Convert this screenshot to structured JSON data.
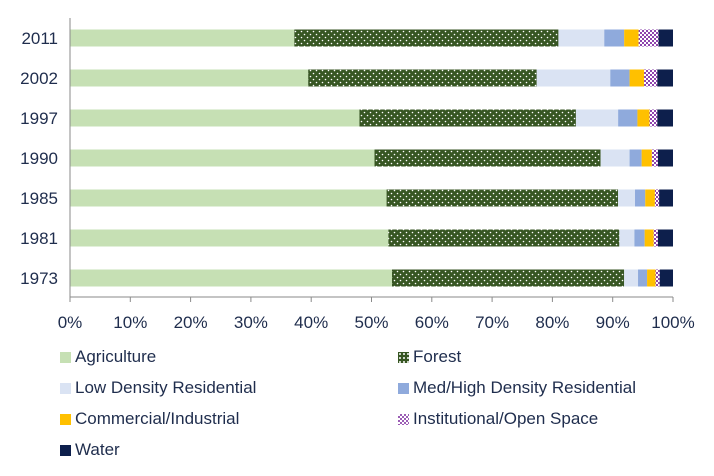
{
  "chart_data": {
    "type": "bar",
    "orientation": "horizontal",
    "stacked": "percent",
    "categories": [
      "2011",
      "2002",
      "1997",
      "1990",
      "1985",
      "1981",
      "1973"
    ],
    "xlim": [
      0,
      100
    ],
    "xticks": [
      "0%",
      "10%",
      "20%",
      "30%",
      "40%",
      "50%",
      "60%",
      "70%",
      "80%",
      "90%",
      "100%"
    ],
    "grid": false,
    "legend_position": "bottom",
    "series": [
      {
        "name": "Agriculture",
        "color": "#c6e0b4",
        "pattern": "solid",
        "values": [
          37.2,
          39.5,
          48.0,
          50.5,
          52.5,
          52.8,
          53.4
        ]
      },
      {
        "name": "Forest",
        "color": "#375623",
        "pattern": "dots",
        "values": [
          43.8,
          37.9,
          35.9,
          37.5,
          38.4,
          38.3,
          38.5
        ]
      },
      {
        "name": "Low Density Residential",
        "color": "#dae3f3",
        "pattern": "solid",
        "values": [
          7.6,
          12.2,
          7.0,
          4.8,
          2.8,
          2.5,
          2.3
        ]
      },
      {
        "name": "Med/High Density Residential",
        "color": "#8faadc",
        "pattern": "solid",
        "values": [
          3.3,
          3.2,
          3.2,
          2.0,
          1.7,
          1.7,
          1.5
        ]
      },
      {
        "name": "Commercial/Industrial",
        "color": "#ffc000",
        "pattern": "solid",
        "values": [
          2.4,
          2.4,
          2.0,
          1.7,
          1.6,
          1.5,
          1.4
        ]
      },
      {
        "name": "Institutional/Open Space",
        "color": "#9b5db5",
        "pattern": "checker",
        "values": [
          3.3,
          2.2,
          1.3,
          1.0,
          0.7,
          0.7,
          0.7
        ]
      },
      {
        "name": "Water",
        "color": "#0d1f4c",
        "pattern": "solid",
        "values": [
          2.4,
          2.6,
          2.6,
          2.5,
          2.3,
          2.5,
          2.2
        ]
      }
    ]
  }
}
